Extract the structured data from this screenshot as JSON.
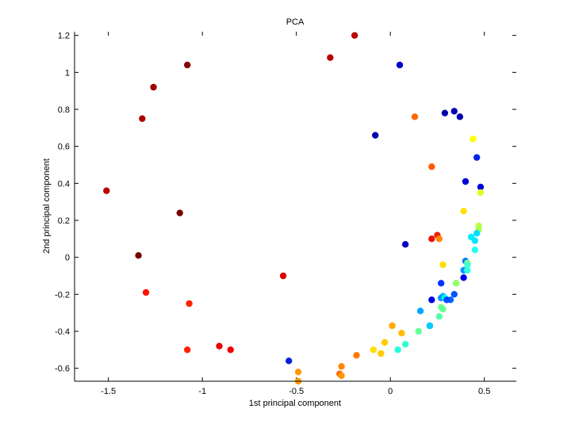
{
  "chart_data": {
    "type": "scatter",
    "title": "PCA",
    "xlabel": "1st principal component",
    "ylabel": "2nd principal component",
    "xlim": [
      -1.68,
      0.67
    ],
    "ylim": [
      -0.67,
      1.22
    ],
    "xticks": [
      -1.5,
      -1,
      -0.5,
      0,
      0.5
    ],
    "xtick_labels": [
      "-1.5",
      "-1",
      "-0.5",
      "0",
      "0.5"
    ],
    "yticks": [
      -0.6,
      -0.4,
      -0.2,
      0,
      0.2,
      0.4,
      0.6,
      0.8,
      1,
      1.2
    ],
    "ytick_labels": [
      "-0.6",
      "-0.4",
      "-0.2",
      "0",
      "0.2",
      "0.4",
      "0.6",
      "0.8",
      "1",
      "1.2"
    ],
    "grid": false,
    "legend": "none",
    "colormap": "jet",
    "points": [
      {
        "x": -0.19,
        "y": 1.2,
        "color": "#bb0000"
      },
      {
        "x": -0.32,
        "y": 1.08,
        "color": "#bb0000"
      },
      {
        "x": 0.05,
        "y": 1.04,
        "color": "#0000c8"
      },
      {
        "x": -1.08,
        "y": 1.04,
        "color": "#880000"
      },
      {
        "x": -1.26,
        "y": 0.92,
        "color": "#a00000"
      },
      {
        "x": 0.34,
        "y": 0.79,
        "color": "#0000b0"
      },
      {
        "x": 0.29,
        "y": 0.78,
        "color": "#0000b0"
      },
      {
        "x": 0.37,
        "y": 0.76,
        "color": "#0000b0"
      },
      {
        "x": 0.13,
        "y": 0.76,
        "color": "#ff6600"
      },
      {
        "x": -1.32,
        "y": 0.75,
        "color": "#aa0000"
      },
      {
        "x": -0.08,
        "y": 0.66,
        "color": "#0000b0"
      },
      {
        "x": 0.44,
        "y": 0.64,
        "color": "#ffff00"
      },
      {
        "x": 0.46,
        "y": 0.54,
        "color": "#0022ee"
      },
      {
        "x": 0.22,
        "y": 0.49,
        "color": "#ff5a00"
      },
      {
        "x": 0.4,
        "y": 0.41,
        "color": "#0000d8"
      },
      {
        "x": 0.48,
        "y": 0.38,
        "color": "#0000e0"
      },
      {
        "x": -1.51,
        "y": 0.36,
        "color": "#bb0000"
      },
      {
        "x": 0.48,
        "y": 0.35,
        "color": "#ddff22"
      },
      {
        "x": 0.39,
        "y": 0.25,
        "color": "#ffe000"
      },
      {
        "x": -1.12,
        "y": 0.24,
        "color": "#770000"
      },
      {
        "x": 0.47,
        "y": 0.17,
        "color": "#bbff44"
      },
      {
        "x": 0.47,
        "y": 0.15,
        "color": "#aaff55"
      },
      {
        "x": 0.46,
        "y": 0.13,
        "color": "#00ddff"
      },
      {
        "x": 0.25,
        "y": 0.12,
        "color": "#ee2200"
      },
      {
        "x": 0.43,
        "y": 0.11,
        "color": "#00eeff"
      },
      {
        "x": 0.22,
        "y": 0.1,
        "color": "#ee1100"
      },
      {
        "x": 0.26,
        "y": 0.1,
        "color": "#ff8800"
      },
      {
        "x": 0.45,
        "y": 0.09,
        "color": "#00e8ff"
      },
      {
        "x": 0.08,
        "y": 0.07,
        "color": "#0000c0"
      },
      {
        "x": 0.45,
        "y": 0.04,
        "color": "#22ffee"
      },
      {
        "x": -1.34,
        "y": 0.01,
        "color": "#770000"
      },
      {
        "x": 0.4,
        "y": -0.02,
        "color": "#0077ff"
      },
      {
        "x": 0.41,
        "y": -0.03,
        "color": "#88ff77"
      },
      {
        "x": 0.41,
        "y": -0.04,
        "color": "#44ffcc"
      },
      {
        "x": 0.28,
        "y": -0.04,
        "color": "#ffdd00"
      },
      {
        "x": 0.39,
        "y": -0.07,
        "color": "#0099ff"
      },
      {
        "x": 0.41,
        "y": -0.07,
        "color": "#33ffdd"
      },
      {
        "x": -0.57,
        "y": -0.1,
        "color": "#dd0000"
      },
      {
        "x": 0.39,
        "y": -0.11,
        "color": "#0000ee"
      },
      {
        "x": 0.35,
        "y": -0.14,
        "color": "#00ccff"
      },
      {
        "x": 0.35,
        "y": -0.14,
        "color": "#99ff66"
      },
      {
        "x": 0.27,
        "y": -0.14,
        "color": "#0033ff"
      },
      {
        "x": -1.3,
        "y": -0.19,
        "color": "#ff1100"
      },
      {
        "x": 0.34,
        "y": -0.2,
        "color": "#0055ff"
      },
      {
        "x": 0.28,
        "y": -0.21,
        "color": "#00bbff"
      },
      {
        "x": 0.27,
        "y": -0.22,
        "color": "#0099ff"
      },
      {
        "x": 0.29,
        "y": -0.22,
        "color": "#00ffee"
      },
      {
        "x": 0.32,
        "y": -0.23,
        "color": "#0066ff"
      },
      {
        "x": 0.3,
        "y": -0.23,
        "color": "#0044ff"
      },
      {
        "x": 0.22,
        "y": -0.23,
        "color": "#0000dd"
      },
      {
        "x": -1.07,
        "y": -0.25,
        "color": "#ff2200"
      },
      {
        "x": 0.27,
        "y": -0.27,
        "color": "#77ff88"
      },
      {
        "x": 0.28,
        "y": -0.28,
        "color": "#66ff99"
      },
      {
        "x": 0.16,
        "y": -0.29,
        "color": "#00aaff"
      },
      {
        "x": 0.26,
        "y": -0.32,
        "color": "#55ffaa"
      },
      {
        "x": 0.01,
        "y": -0.37,
        "color": "#ffaa00"
      },
      {
        "x": 0.21,
        "y": -0.37,
        "color": "#0088ff"
      },
      {
        "x": 0.21,
        "y": -0.37,
        "color": "#00ccff"
      },
      {
        "x": 0.15,
        "y": -0.4,
        "color": "#66ff99"
      },
      {
        "x": 0.06,
        "y": -0.41,
        "color": "#ffbb00"
      },
      {
        "x": -0.03,
        "y": -0.46,
        "color": "#ffcc00"
      },
      {
        "x": 0.08,
        "y": -0.47,
        "color": "#33ffcc"
      },
      {
        "x": -0.91,
        "y": -0.48,
        "color": "#ee0000"
      },
      {
        "x": -1.08,
        "y": -0.5,
        "color": "#ff2200"
      },
      {
        "x": -0.85,
        "y": -0.5,
        "color": "#ee0000"
      },
      {
        "x": -0.09,
        "y": -0.5,
        "color": "#ffdd00"
      },
      {
        "x": 0.04,
        "y": -0.5,
        "color": "#22ffdd"
      },
      {
        "x": -0.05,
        "y": -0.52,
        "color": "#ffcc00"
      },
      {
        "x": -0.18,
        "y": -0.53,
        "color": "#ff7700"
      },
      {
        "x": -0.54,
        "y": -0.56,
        "color": "#0022dd"
      },
      {
        "x": -0.26,
        "y": -0.59,
        "color": "#ff8800"
      },
      {
        "x": -0.49,
        "y": -0.62,
        "color": "#ff9900"
      },
      {
        "x": -0.27,
        "y": -0.63,
        "color": "#ff6600"
      },
      {
        "x": -0.26,
        "y": -0.64,
        "color": "#ff9900"
      },
      {
        "x": -0.49,
        "y": -0.67,
        "color": "#ff9900"
      }
    ]
  }
}
